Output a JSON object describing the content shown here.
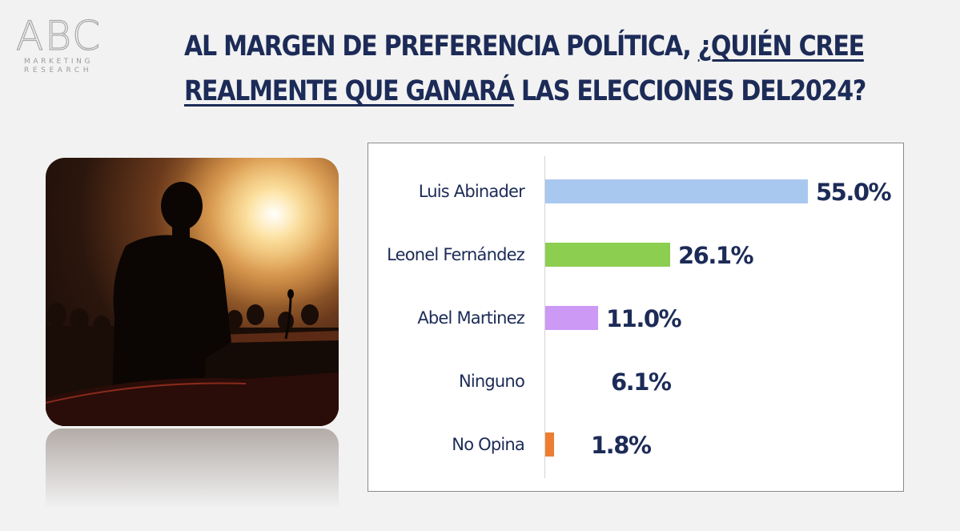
{
  "logo": {
    "letters": "ABC",
    "line1": "MARKETING",
    "line2": "RESEARCH"
  },
  "header": {
    "title_line1_plain": "AL MARGEN DE PREFERENCIA POLÍTICA, ",
    "title_line1_underlined": "¿QUIÉN CREE",
    "title_line2_underlined": "REALMENTE QUE GANARÁ",
    "title_line2_plain": " LAS ELECCIONES DEL2024?"
  },
  "chart_data": {
    "type": "bar",
    "orientation": "horizontal",
    "categories": [
      "Luis Abinader",
      "Leonel Fernández",
      "Abel Martinez",
      "Ninguno",
      "No Opina"
    ],
    "values": [
      55.0,
      26.1,
      11.0,
      6.1,
      1.8
    ],
    "value_labels": [
      "55.0%",
      "26.1%",
      "11.0%",
      "6.1%",
      "1.8%"
    ],
    "colors": [
      "#a9c8f0",
      "#8ccf50",
      "#cc99f5",
      "#ffffff",
      "#ed7d31"
    ],
    "xlim": [
      0,
      55
    ],
    "grid": false,
    "legend": "none"
  }
}
